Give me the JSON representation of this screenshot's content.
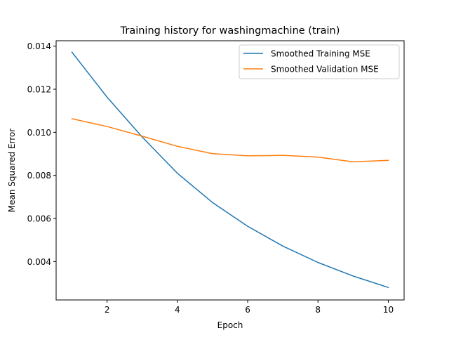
{
  "chart_data": {
    "type": "line",
    "title": "Training history for washingmachine (train)",
    "xlabel": "Epoch",
    "ylabel": "Mean Squared Error",
    "xlim": [
      0.55,
      10.45
    ],
    "ylim": [
      0.00222,
      0.01425
    ],
    "x_ticks": [
      2,
      4,
      6,
      8,
      10
    ],
    "x_tick_labels": [
      "2",
      "4",
      "6",
      "8",
      "10"
    ],
    "y_ticks": [
      0.004,
      0.006,
      0.008,
      0.01,
      0.012,
      0.014
    ],
    "y_tick_labels": [
      "0.004",
      "0.006",
      "0.008",
      "0.010",
      "0.012",
      "0.014"
    ],
    "grid": false,
    "legend_position": "upper right",
    "x": [
      1,
      2,
      3,
      4,
      5,
      6,
      7,
      8,
      9,
      10
    ],
    "series": [
      {
        "name": "Smoothed Training MSE",
        "color": "#1f77b4",
        "values": [
          0.01372,
          0.01163,
          0.00978,
          0.0081,
          0.00674,
          0.00564,
          0.00472,
          0.00396,
          0.00333,
          0.0028
        ]
      },
      {
        "name": "Smoothed Validation MSE",
        "color": "#ff7f0e",
        "values": [
          0.01063,
          0.01027,
          0.00982,
          0.00935,
          0.00901,
          0.00891,
          0.00893,
          0.00885,
          0.00863,
          0.0087
        ]
      }
    ]
  }
}
